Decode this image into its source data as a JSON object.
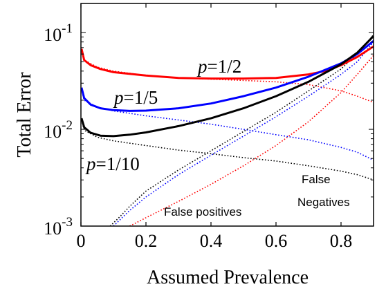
{
  "chart_data": {
    "type": "line",
    "xlabel": "Assumed Prevalence",
    "ylabel": "Total Error",
    "xlim": [
      0,
      0.9
    ],
    "ylim": [
      0.001,
      0.2
    ],
    "yscale": "log",
    "grid": false,
    "xticks": [
      {
        "value": 0,
        "label": "0"
      },
      {
        "value": 0.2,
        "label": "0.2"
      },
      {
        "value": 0.4,
        "label": "0.4"
      },
      {
        "value": 0.6,
        "label": "0.6"
      },
      {
        "value": 0.8,
        "label": "0.8"
      }
    ],
    "yticks": [
      {
        "value": 0.001,
        "base": "10",
        "exp": "-3"
      },
      {
        "value": 0.01,
        "base": "10",
        "exp": "-2"
      },
      {
        "value": 0.1,
        "base": "10",
        "exp": "-1"
      }
    ],
    "series": [
      {
        "label_var": "p",
        "label_val": "=1/2",
        "color": "#ff0000",
        "total": {
          "x": [
            0.002,
            0.01,
            0.03,
            0.06,
            0.1,
            0.2,
            0.3,
            0.4,
            0.5,
            0.6,
            0.7,
            0.75,
            0.8,
            0.85,
            0.9
          ],
          "y": [
            0.068,
            0.052,
            0.046,
            0.042,
            0.039,
            0.036,
            0.034,
            0.0335,
            0.0335,
            0.034,
            0.037,
            0.04,
            0.046,
            0.056,
            0.072
          ]
        },
        "false_negatives": {
          "x": [
            0.002,
            0.01,
            0.05,
            0.1,
            0.2,
            0.3,
            0.4,
            0.5,
            0.6,
            0.7,
            0.8,
            0.85,
            0.9
          ],
          "y": [
            0.066,
            0.052,
            0.044,
            0.04,
            0.036,
            0.034,
            0.033,
            0.032,
            0.031,
            0.029,
            0.025,
            0.022,
            0.019
          ]
        },
        "false_positives": {
          "x": [
            0.15,
            0.2,
            0.3,
            0.4,
            0.5,
            0.6,
            0.7,
            0.8,
            0.85,
            0.9
          ],
          "y": [
            0.001,
            0.00122,
            0.0018,
            0.0027,
            0.0042,
            0.0068,
            0.012,
            0.024,
            0.037,
            0.058
          ]
        }
      },
      {
        "label_var": "p",
        "label_val": "=1/5",
        "color": "#0000ff",
        "total": {
          "x": [
            0.002,
            0.01,
            0.03,
            0.06,
            0.1,
            0.15,
            0.2,
            0.3,
            0.4,
            0.5,
            0.6,
            0.7,
            0.8,
            0.85,
            0.9
          ],
          "y": [
            0.027,
            0.021,
            0.018,
            0.0165,
            0.0158,
            0.0155,
            0.0156,
            0.0165,
            0.0185,
            0.022,
            0.027,
            0.035,
            0.048,
            0.06,
            0.082
          ]
        },
        "false_negatives": {
          "x": [
            0.002,
            0.01,
            0.05,
            0.1,
            0.2,
            0.3,
            0.4,
            0.5,
            0.6,
            0.7,
            0.8,
            0.85,
            0.9
          ],
          "y": [
            0.026,
            0.02,
            0.017,
            0.0155,
            0.0138,
            0.0125,
            0.0113,
            0.01,
            0.0088,
            0.0078,
            0.0065,
            0.0058,
            0.0048
          ]
        },
        "false_positives": {
          "x": [
            0.1,
            0.15,
            0.2,
            0.3,
            0.4,
            0.5,
            0.6,
            0.7,
            0.8,
            0.85,
            0.9
          ],
          "y": [
            0.001,
            0.00145,
            0.002,
            0.0034,
            0.0054,
            0.0085,
            0.0135,
            0.022,
            0.037,
            0.05,
            0.08
          ]
        }
      },
      {
        "label_var": "p",
        "label_val": "=1/10",
        "color": "#000000",
        "total": {
          "x": [
            0.002,
            0.01,
            0.03,
            0.06,
            0.1,
            0.15,
            0.2,
            0.3,
            0.4,
            0.5,
            0.6,
            0.7,
            0.8,
            0.85,
            0.9
          ],
          "y": [
            0.013,
            0.0105,
            0.0092,
            0.0086,
            0.0085,
            0.0088,
            0.0093,
            0.0108,
            0.013,
            0.0165,
            0.022,
            0.031,
            0.047,
            0.062,
            0.092
          ]
        },
        "false_negatives": {
          "x": [
            0.002,
            0.01,
            0.05,
            0.1,
            0.2,
            0.3,
            0.4,
            0.5,
            0.6,
            0.7,
            0.8,
            0.85,
            0.9
          ],
          "y": [
            0.0125,
            0.0098,
            0.0083,
            0.0076,
            0.0068,
            0.0061,
            0.0056,
            0.0051,
            0.0047,
            0.0042,
            0.0037,
            0.0034,
            0.003
          ]
        },
        "false_positives": {
          "x": [
            0.09,
            0.12,
            0.15,
            0.2,
            0.3,
            0.4,
            0.5,
            0.6,
            0.7,
            0.8,
            0.85,
            0.9
          ],
          "y": [
            0.001,
            0.00125,
            0.0016,
            0.0023,
            0.0038,
            0.006,
            0.0095,
            0.015,
            0.025,
            0.042,
            0.06,
            0.095
          ]
        }
      }
    ],
    "annotations": {
      "false_positives": "False positives",
      "false_negatives_line1": "False",
      "false_negatives_line2": "Negatives"
    }
  }
}
